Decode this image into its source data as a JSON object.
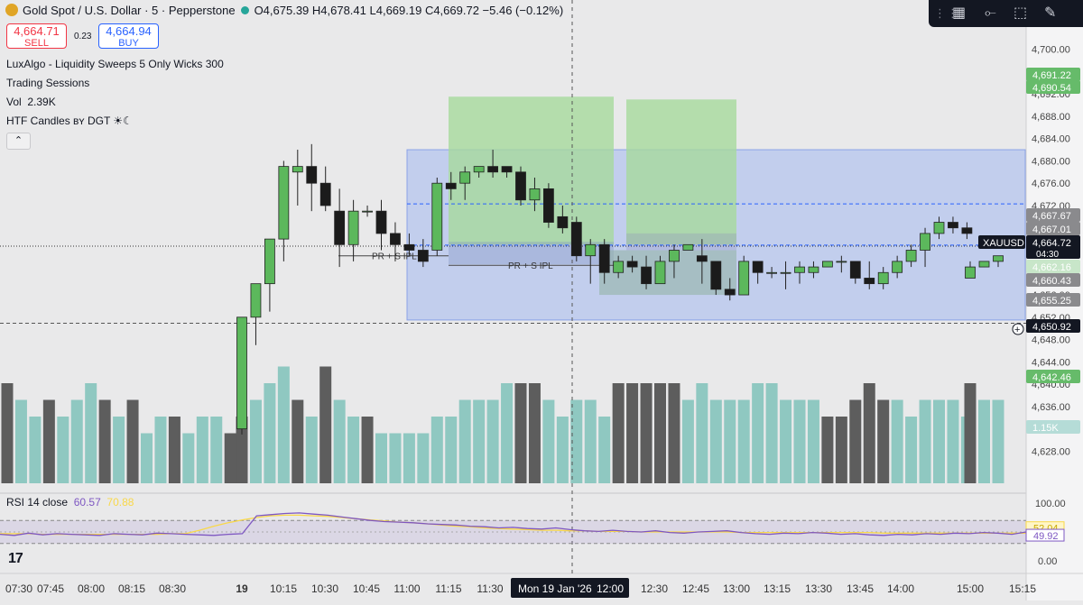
{
  "header": {
    "symbol_title": "Gold Spot / U.S. Dollar · 5 · Pepperstone",
    "ohlc": "O4,675.39 H4,678.41 L4,669.19 C4,669.72 −5.46 (−0.12%)"
  },
  "trade": {
    "sell_price": "4,664.71",
    "sell_label": "SELL",
    "spread": "0.23",
    "buy_price": "4,664.94",
    "buy_label": "BUY"
  },
  "indicators": [
    "LuxAlgo - Liquidity Sweeps 5 Only Wicks 300",
    "Trading Sessions",
    "HTF Candles ʙʏ DGT ☀︎☾"
  ],
  "volume": {
    "label": "Vol",
    "value": "2.39K"
  },
  "collapse_icon": "chevron-up-icon",
  "toolbar_icons": [
    "grip-icon",
    "grid-icon",
    "line-icon",
    "rectangle-icon",
    "brush-icon"
  ],
  "colors": {
    "up": "#5cb85c",
    "down": "#1b1b1b",
    "vol_up": "#8fc8c1",
    "vol_down": "#5d5d5d",
    "rsi": "#7e57c2",
    "rsi_ma": "#f9d849",
    "accent_blue": "#2962ff",
    "session_blue": "#a3b8ef",
    "session_green": "#a6d99c"
  },
  "chart_data": {
    "type": "candlestick",
    "symbol": "XAUUSD",
    "interval": "5",
    "ylim": [
      4625,
      4703
    ],
    "y_ticks": [
      "4,700.00",
      "4,696.00",
      "4,692.00",
      "4,688.00",
      "4,684.00",
      "4,680.00",
      "4,676.00",
      "4,672.00",
      "4,668.00",
      "4,664.00",
      "4,660.00",
      "4,656.00",
      "4,652.00",
      "4,648.00",
      "4,644.00",
      "4,640.00",
      "4,636.00",
      "4,632.00",
      "4,628.00"
    ],
    "x_labels": [
      "07:30",
      "07:45",
      "08:00",
      "08:15",
      "08:30",
      "19",
      "10:15",
      "10:30",
      "10:45",
      "11:00",
      "11:15",
      "11:30",
      "12:00",
      "12:30",
      "12:45",
      "13:00",
      "13:15",
      "13:30",
      "13:45",
      "14:00",
      "15:00",
      "15:15"
    ],
    "crosshair_label": "Mon 19 Jan '26",
    "crosshair_time": "12:00",
    "candles": [
      [
        4632,
        4652,
        4631,
        4652
      ],
      [
        4652,
        4658,
        4647,
        4658
      ],
      [
        4658,
        4666,
        4653,
        4666
      ],
      [
        4666,
        4679,
        4662,
        4680
      ],
      [
        4678,
        4679,
        4672,
        4682
      ],
      [
        4679,
        4676,
        4671,
        4683
      ],
      [
        4676,
        4672,
        4671,
        4679
      ],
      [
        4671,
        4665,
        4661,
        4675
      ],
      [
        4665,
        4671,
        4662,
        4673
      ],
      [
        4671,
        4671,
        4670,
        4672
      ],
      [
        4671,
        4667,
        4664,
        4673
      ],
      [
        4667,
        4665,
        4662,
        4669
      ],
      [
        4665,
        4664,
        4663,
        4667
      ],
      [
        4664,
        4662,
        4661,
        4666
      ],
      [
        4664,
        4676,
        4663,
        4677
      ],
      [
        4676,
        4675,
        4673,
        4678
      ],
      [
        4676,
        4678,
        4673,
        4679
      ],
      [
        4678,
        4679,
        4677,
        4679
      ],
      [
        4679,
        4678,
        4677,
        4682
      ],
      [
        4679,
        4678,
        4677,
        4679
      ],
      [
        4678,
        4673,
        4672,
        4679
      ],
      [
        4673,
        4675,
        4671,
        4677
      ],
      [
        4675,
        4669,
        4668,
        4676
      ],
      [
        4670,
        4668,
        4667,
        4672
      ],
      [
        4669,
        4663,
        4662,
        4670
      ],
      [
        4663,
        4665,
        4658,
        4666
      ],
      [
        4665,
        4660,
        4658,
        4666
      ],
      [
        4660,
        4662,
        4659,
        4663
      ],
      [
        4662,
        4661,
        4660,
        4663
      ],
      [
        4661,
        4658,
        4657,
        4663
      ],
      [
        4658,
        4662,
        4658,
        4663
      ],
      [
        4662,
        4664,
        4659,
        4665
      ],
      [
        4664,
        4665,
        4664,
        4665
      ],
      [
        4663,
        4662,
        4658,
        4666
      ],
      [
        4662,
        4657,
        4656,
        4662
      ],
      [
        4657,
        4656,
        4655,
        4659
      ],
      [
        4656,
        4662,
        4656,
        4663
      ],
      [
        4662,
        4660,
        4658,
        4662
      ],
      [
        4660,
        4660,
        4659,
        4661
      ],
      [
        4660,
        4660,
        4657,
        4662
      ],
      [
        4660,
        4661,
        4658,
        4662
      ],
      [
        4660,
        4661,
        4659,
        4662
      ],
      [
        4661,
        4662,
        4661,
        4662
      ],
      [
        4662,
        4662,
        4660,
        4663
      ],
      [
        4662,
        4659,
        4658,
        4662
      ],
      [
        4659,
        4658,
        4657,
        4662
      ],
      [
        4658,
        4660,
        4657,
        4661
      ],
      [
        4660,
        4662,
        4659,
        4663
      ],
      [
        4662,
        4664,
        4661,
        4665
      ],
      [
        4664,
        4667,
        4661,
        4668
      ],
      [
        4667,
        4669,
        4666,
        4670
      ],
      [
        4669,
        4668,
        4667,
        4670
      ],
      [
        4668,
        4667,
        4666,
        4669
      ],
      [
        4659,
        4661,
        4659,
        4662
      ],
      [
        4661,
        4662,
        4661,
        4662
      ],
      [
        4662,
        4663,
        4661,
        4663
      ]
    ],
    "volume": [
      [
        4,
        "d"
      ],
      [
        5,
        "u"
      ],
      [
        6,
        "u"
      ],
      [
        7,
        "u"
      ],
      [
        5,
        "d"
      ],
      [
        4,
        "u"
      ],
      [
        7,
        "d"
      ],
      [
        5,
        "u"
      ],
      [
        4,
        "u"
      ],
      [
        4,
        "d"
      ],
      [
        3,
        "u"
      ],
      [
        3,
        "u"
      ],
      [
        3,
        "u"
      ],
      [
        3,
        "u"
      ],
      [
        4,
        "u"
      ],
      [
        4,
        "u"
      ],
      [
        5,
        "u"
      ],
      [
        5,
        "u"
      ],
      [
        5,
        "u"
      ],
      [
        6,
        "u"
      ],
      [
        6,
        "d"
      ],
      [
        6,
        "d"
      ],
      [
        5,
        "u"
      ],
      [
        4,
        "u"
      ],
      [
        5,
        "u"
      ],
      [
        5,
        "u"
      ],
      [
        4,
        "u"
      ],
      [
        6,
        "d"
      ],
      [
        6,
        "d"
      ],
      [
        6,
        "d"
      ],
      [
        6,
        "d"
      ],
      [
        6,
        "d"
      ],
      [
        5,
        "u"
      ],
      [
        6,
        "u"
      ],
      [
        5,
        "u"
      ],
      [
        5,
        "u"
      ],
      [
        5,
        "u"
      ],
      [
        6,
        "u"
      ],
      [
        6,
        "u"
      ],
      [
        5,
        "u"
      ],
      [
        5,
        "u"
      ],
      [
        5,
        "u"
      ],
      [
        4,
        "d"
      ],
      [
        4,
        "d"
      ],
      [
        5,
        "d"
      ],
      [
        6,
        "d"
      ],
      [
        5,
        "d"
      ],
      [
        5,
        "u"
      ],
      [
        4,
        "u"
      ],
      [
        5,
        "u"
      ],
      [
        5,
        "u"
      ],
      [
        5,
        "u"
      ],
      [
        4,
        "u"
      ],
      [
        6,
        "d"
      ],
      [
        5,
        "u"
      ],
      [
        5,
        "u"
      ]
    ],
    "price_labels": [
      {
        "value": "4,691.22",
        "kind": "green"
      },
      {
        "value": "4,690.54",
        "kind": "green"
      },
      {
        "value": "4,667.67",
        "kind": "gray"
      },
      {
        "value": "4,667.01",
        "kind": "gray"
      },
      {
        "value": "4,664.72",
        "kind": "dark",
        "tag": "XAUUSD",
        "sub": "04:30"
      },
      {
        "value": "4,662.16",
        "kind": "lightgreen"
      },
      {
        "value": "4,660.43",
        "kind": "gray"
      },
      {
        "value": "4,655.25",
        "kind": "gray"
      },
      {
        "value": "4,650.92",
        "kind": "dark"
      },
      {
        "value": "4,642.46",
        "kind": "green"
      },
      {
        "value": "1.15K",
        "kind": "teal"
      }
    ],
    "annotations": [
      "PR + S IPL",
      "PR + S IPL"
    ],
    "rsi": {
      "label": "RSI 14 close",
      "value": "60.57",
      "ma_value": "70.88",
      "ticks": [
        "100.00",
        "0.00"
      ],
      "right_labels": [
        "52.04",
        "49.92"
      ],
      "levels": [
        70,
        30
      ]
    }
  }
}
